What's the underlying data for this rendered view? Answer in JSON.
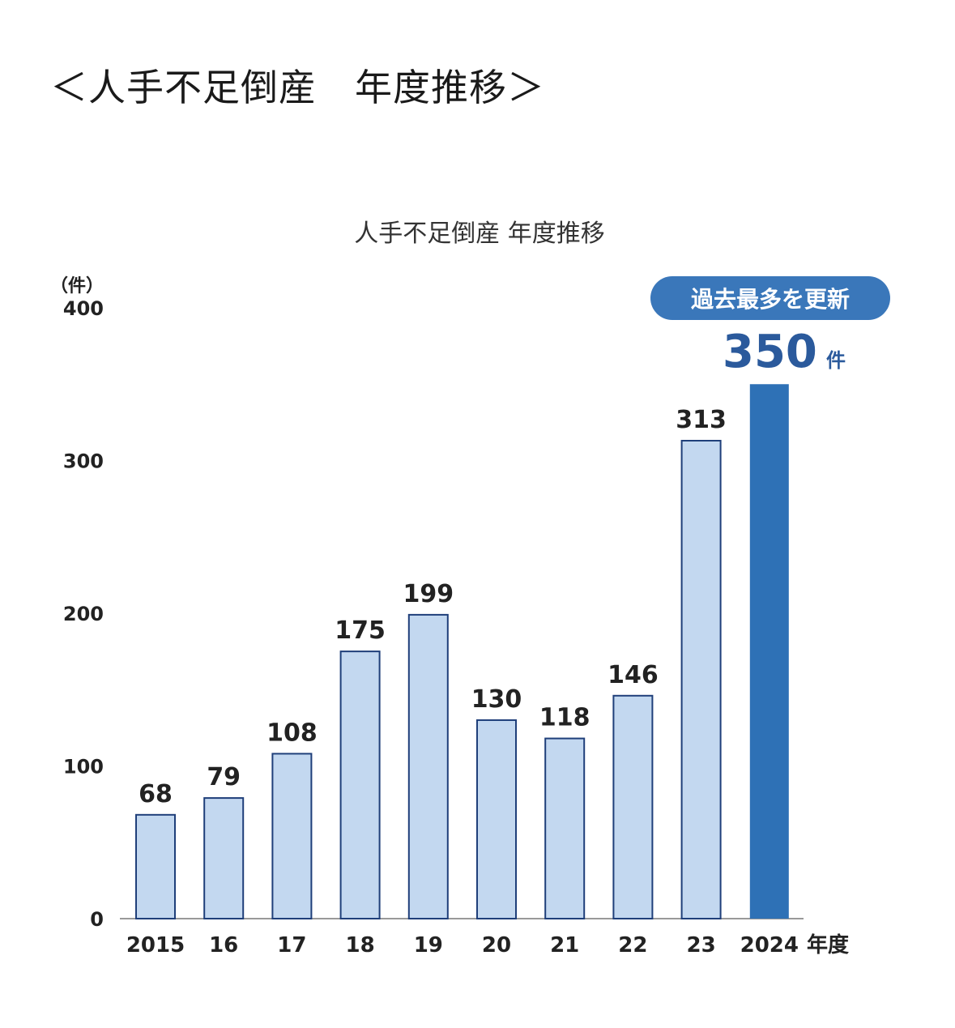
{
  "page": {
    "heading": "＜人手不足倒産　年度推移＞"
  },
  "colors": {
    "bar": "#c3d8f0",
    "bar_stroke": "#1f3f7a",
    "highlight": "#2e71b6",
    "badge": "#3a77ba",
    "axis": "#999999"
  },
  "chart_data": {
    "type": "bar",
    "title": "人手不足倒産 年度推移",
    "ylabel": "（件）",
    "xlabel_unit": "年度",
    "ylim": [
      0,
      400
    ],
    "yticks": [
      0,
      100,
      200,
      300,
      400
    ],
    "categories": [
      "2015",
      "16",
      "17",
      "18",
      "19",
      "20",
      "21",
      "22",
      "23",
      "2024"
    ],
    "values": [
      68,
      79,
      108,
      175,
      199,
      130,
      118,
      146,
      313,
      350
    ],
    "highlight_index": 9,
    "annotation": {
      "badge": "過去最多を更新",
      "value": "350",
      "unit": "件"
    },
    "grid": false
  }
}
